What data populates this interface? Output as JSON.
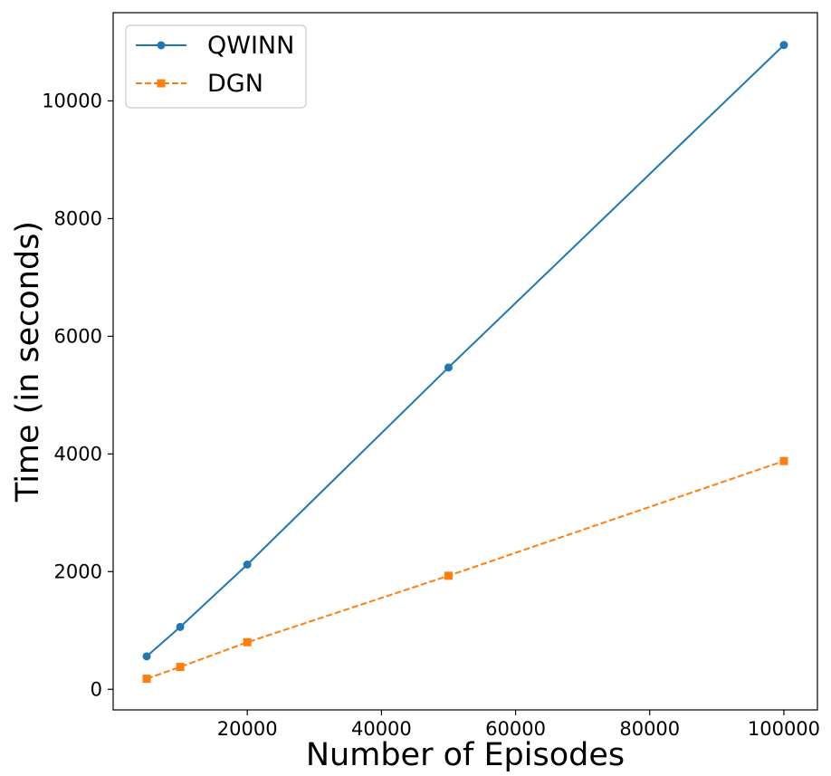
{
  "chart_data": {
    "type": "line",
    "xlabel": "Number of Episodes",
    "ylabel": "Time (in seconds)",
    "xlim": [
      0,
      105000
    ],
    "ylim": [
      -350,
      11500
    ],
    "xticks": [
      20000,
      40000,
      60000,
      80000,
      100000
    ],
    "yticks": [
      0,
      2000,
      4000,
      6000,
      8000,
      10000
    ],
    "grid": false,
    "legend_position": "top-left",
    "x": [
      5000,
      10000,
      20000,
      50000,
      100000
    ],
    "series": [
      {
        "name": "QWINN",
        "values": [
          560,
          1060,
          2120,
          5470,
          10950
        ],
        "color": "#1f77b4",
        "marker": "circle",
        "linestyle": "solid"
      },
      {
        "name": "DGN",
        "values": [
          180,
          380,
          800,
          1930,
          3880
        ],
        "color": "#ff7f0e",
        "marker": "square",
        "linestyle": "dashed"
      }
    ]
  }
}
